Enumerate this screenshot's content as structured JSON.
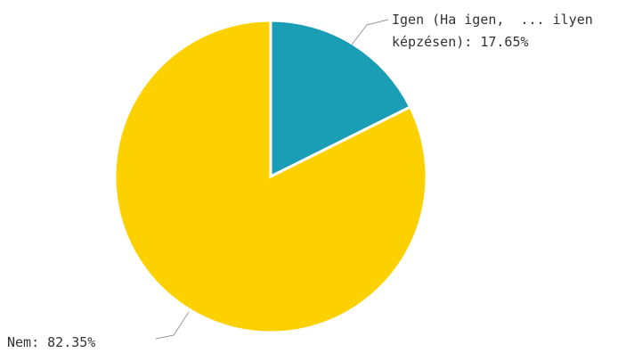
{
  "chart_data": {
    "type": "pie",
    "title": "",
    "slices": [
      {
        "name": "Igen (Ha igen,  ... ilyen képzésen)",
        "value": 17.65,
        "label_line1": "Igen (Ha igen,  ... ilyen",
        "label_line2": "képzésen): 17.65%",
        "color": "#1a9eb5"
      },
      {
        "name": "Nem",
        "value": 82.35,
        "label_line1": "Nem: 82.35%",
        "color": "#fdd000"
      }
    ],
    "legend": "none"
  }
}
